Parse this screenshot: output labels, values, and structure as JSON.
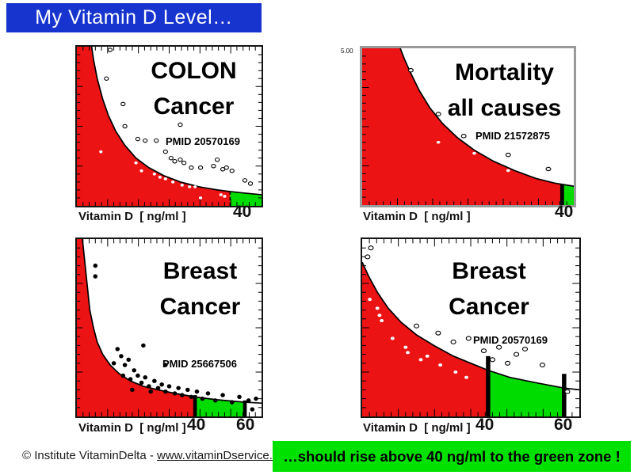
{
  "slide": {
    "title": "My Vitamin D Level…",
    "footer_copyright": "© Institute VitaminDelta - ",
    "footer_link": "www.vitaminDservice.com",
    "green_banner": "…should rise above 40 ng/ml to the green zone !"
  },
  "colors": {
    "banner_blue": "#1735CE",
    "zone_red": "#EB1313",
    "zone_green": "#00DC00",
    "banner_green": "#00E100",
    "curve": "#000000"
  },
  "chart_data": [
    {
      "type": "area-scatter",
      "title": [
        "COLON",
        "Cancer"
      ],
      "pmid": "PMID 20570169",
      "xlabel": "Vitamin D  [ ng/ml ]",
      "x_marks": [
        {
          "label": "40",
          "pos": 83
        }
      ],
      "x_range_note": "x axis = vitamin D ng/ml, red zone below 40, green zone above 40",
      "zones": {
        "red": [
          0,
          83
        ],
        "green": [
          83,
          100
        ]
      },
      "bars": [
        {
          "pos": 83,
          "w": 0.8,
          "above": 0,
          "dashed": true
        }
      ],
      "ticks": {
        "top": true,
        "left": true,
        "right": true,
        "bottom": true
      },
      "curve": [
        [
          8,
          0
        ],
        [
          9,
          8
        ],
        [
          11,
          20
        ],
        [
          14,
          33
        ],
        [
          17,
          43
        ],
        [
          21,
          53
        ],
        [
          26,
          62
        ],
        [
          32,
          70
        ],
        [
          39,
          76
        ],
        [
          47,
          81
        ],
        [
          56,
          85
        ],
        [
          66,
          88
        ],
        [
          76,
          90
        ],
        [
          83,
          91
        ],
        [
          91,
          92
        ],
        [
          100,
          93
        ]
      ],
      "points_open": [
        [
          18,
          2
        ],
        [
          16,
          20
        ],
        [
          25,
          36
        ],
        [
          26,
          50
        ],
        [
          56,
          49
        ],
        [
          33,
          58
        ],
        [
          37,
          59
        ],
        [
          43,
          59
        ],
        [
          48,
          66
        ],
        [
          51,
          70
        ],
        [
          53,
          72
        ],
        [
          56,
          71
        ],
        [
          58,
          73
        ],
        [
          62,
          76
        ],
        [
          67,
          76
        ],
        [
          74,
          75
        ],
        [
          76,
          71
        ],
        [
          79,
          77
        ],
        [
          81,
          76
        ],
        [
          84,
          78
        ],
        [
          91,
          84
        ],
        [
          94,
          86
        ]
      ],
      "points_white": [
        [
          13,
          66
        ],
        [
          32,
          73
        ],
        [
          35,
          78
        ],
        [
          42,
          80
        ],
        [
          45,
          82
        ],
        [
          48,
          83
        ],
        [
          52,
          85
        ],
        [
          57,
          87
        ],
        [
          61,
          88
        ],
        [
          64,
          88
        ],
        [
          67,
          95
        ],
        [
          78,
          93
        ],
        [
          80,
          94
        ]
      ],
      "points_black": []
    },
    {
      "type": "area-scatter",
      "title": [
        "Mortality",
        "all causes"
      ],
      "pmid": "PMID 21572875",
      "y_top_label": "5.00",
      "xlabel": "Vitamin D  [ ng/ml ]",
      "x_marks": [
        {
          "label": "40",
          "pos": 94.5
        }
      ],
      "zones": {
        "red": [
          0,
          94.5
        ],
        "green": [
          94.5,
          100
        ]
      },
      "bars": [
        {
          "pos": 94.5,
          "w": 1.8,
          "above": 0,
          "dashed": false
        }
      ],
      "ticks": {
        "top": false,
        "left": true,
        "right": false,
        "bottom": true
      },
      "curve": [
        [
          18,
          0
        ],
        [
          20,
          7
        ],
        [
          23,
          16
        ],
        [
          27,
          27
        ],
        [
          32,
          38
        ],
        [
          38,
          48
        ],
        [
          45,
          57
        ],
        [
          53,
          65
        ],
        [
          62,
          72
        ],
        [
          72,
          78
        ],
        [
          82,
          83
        ],
        [
          91,
          86
        ],
        [
          100,
          88
        ]
      ],
      "points_open": [
        [
          23,
          14
        ],
        [
          36,
          42
        ],
        [
          48,
          56
        ],
        [
          69,
          68
        ],
        [
          88,
          77
        ]
      ],
      "points_white": [
        [
          36,
          60
        ],
        [
          53,
          67
        ],
        [
          69,
          78
        ]
      ],
      "points_black": []
    },
    {
      "type": "area-scatter",
      "title": [
        "Breast",
        "Cancer"
      ],
      "pmid": "PMID 25667506",
      "xlabel": "Vitamin D  [ ng/ml ]",
      "x_marks": [
        {
          "label": "40",
          "pos": 64
        },
        {
          "label": "60",
          "pos": 91
        }
      ],
      "zones": {
        "red": [
          0,
          64
        ],
        "green": [
          64,
          91
        ]
      },
      "bars": [
        {
          "pos": 64,
          "w": 2,
          "above": 1,
          "dashed": false
        },
        {
          "pos": 91,
          "w": 2,
          "above": 1,
          "dashed": false
        }
      ],
      "ticks": {
        "top": true,
        "left": true,
        "right": true,
        "bottom": true
      },
      "curve": [
        [
          3,
          0
        ],
        [
          4,
          10
        ],
        [
          5,
          20
        ],
        [
          6,
          30
        ],
        [
          7,
          40
        ],
        [
          9,
          50
        ],
        [
          11,
          58
        ],
        [
          14,
          65
        ],
        [
          18,
          71
        ],
        [
          23,
          76
        ],
        [
          29,
          80
        ],
        [
          36,
          83
        ],
        [
          44,
          85
        ],
        [
          53,
          87
        ],
        [
          64,
          89
        ],
        [
          75,
          90.5
        ],
        [
          91,
          92
        ],
        [
          100,
          92.5
        ]
      ],
      "points_open": [],
      "points_white": [],
      "points_black": [
        [
          10,
          15
        ],
        [
          10,
          21
        ],
        [
          22,
          62
        ],
        [
          24,
          66
        ],
        [
          20,
          70
        ],
        [
          26,
          71
        ],
        [
          28,
          68
        ],
        [
          31,
          74
        ],
        [
          25,
          77
        ],
        [
          29,
          79
        ],
        [
          33,
          77
        ],
        [
          35,
          81
        ],
        [
          37,
          78
        ],
        [
          39,
          83
        ],
        [
          36,
          60
        ],
        [
          42,
          80
        ],
        [
          44,
          84
        ],
        [
          46,
          82
        ],
        [
          48,
          86
        ],
        [
          50,
          83
        ],
        [
          53,
          87
        ],
        [
          55,
          84
        ],
        [
          57,
          88
        ],
        [
          60,
          85
        ],
        [
          62,
          89
        ],
        [
          65,
          86
        ],
        [
          48,
          71
        ],
        [
          68,
          90
        ],
        [
          71,
          87
        ],
        [
          75,
          91
        ],
        [
          79,
          88
        ],
        [
          84,
          92
        ],
        [
          88,
          89
        ],
        [
          93,
          91
        ],
        [
          97,
          90
        ],
        [
          40,
          86
        ],
        [
          30,
          85
        ],
        [
          95,
          96
        ]
      ]
    },
    {
      "type": "area-scatter",
      "title": [
        "Breast",
        "Cancer"
      ],
      "pmid": "PMID 20570169",
      "xlabel": "Vitamin D  [ ng/ml ]",
      "x_marks": [
        {
          "label": "40",
          "pos": 58
        },
        {
          "label": "60",
          "pos": 93
        }
      ],
      "zones": {
        "red": [
          0,
          58
        ],
        "green": [
          58,
          93
        ]
      },
      "bars": [
        {
          "pos": 58,
          "w": 2,
          "above": 8,
          "dashed": false
        },
        {
          "pos": 93,
          "w": 2,
          "above": 8,
          "dashed": false
        }
      ],
      "ticks": {
        "top": true,
        "left": true,
        "right": true,
        "bottom": true
      },
      "curve": [
        [
          0,
          13
        ],
        [
          3,
          21
        ],
        [
          7,
          30
        ],
        [
          12,
          39
        ],
        [
          18,
          47
        ],
        [
          25,
          54
        ],
        [
          33,
          60
        ],
        [
          42,
          66
        ],
        [
          52,
          71
        ],
        [
          58,
          74
        ],
        [
          68,
          78
        ],
        [
          80,
          81
        ],
        [
          93,
          84
        ],
        [
          100,
          85
        ]
      ],
      "points_open": [
        [
          4,
          5
        ],
        [
          2.5,
          10
        ],
        [
          25,
          49
        ],
        [
          35,
          53
        ],
        [
          42,
          58
        ],
        [
          49,
          56
        ],
        [
          56,
          63
        ],
        [
          60,
          68
        ],
        [
          63,
          61
        ],
        [
          67,
          70
        ],
        [
          71,
          65
        ],
        [
          75,
          62
        ],
        [
          83,
          71
        ],
        [
          94.5,
          86
        ]
      ],
      "points_white": [
        [
          3.5,
          34
        ],
        [
          7,
          39
        ],
        [
          8,
          43
        ],
        [
          9,
          46
        ],
        [
          14,
          56
        ],
        [
          20,
          61
        ],
        [
          21,
          64
        ],
        [
          27,
          68
        ],
        [
          30,
          66
        ],
        [
          36,
          71
        ],
        [
          43,
          75
        ],
        [
          48,
          78
        ]
      ],
      "points_black": []
    }
  ]
}
